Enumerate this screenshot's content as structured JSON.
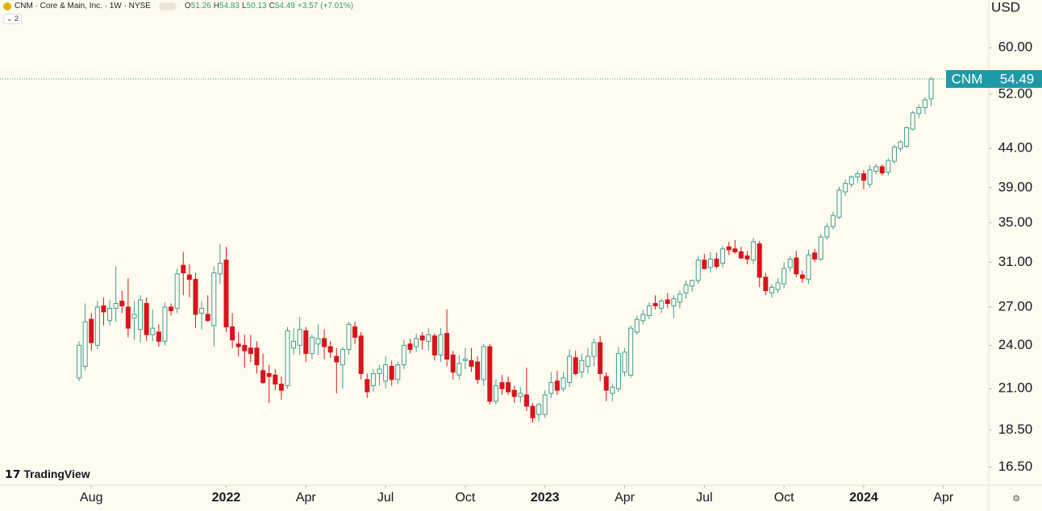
{
  "header": {
    "title": "CNM · Core & Main, Inc. · 1W · NYSE",
    "collapse_count": 2,
    "brand": "TradingView"
  },
  "chart_data": {
    "type": "candlestick",
    "symbol": "CNM",
    "currency": "USD",
    "ohlc_labels": [
      "O",
      "H",
      "L",
      "C"
    ],
    "change": {
      "value": 3.57,
      "label": "+3.57"
    },
    "change_percent": {
      "value": 7.01,
      "label": "(+7.01%)"
    },
    "up_color": "#3f9c96",
    "down_color": "#d8141c",
    "log_scale": true,
    "xlim": [
      -12.9,
      148.4
    ],
    "ylim": [
      15.6,
      69.5
    ],
    "xticks": [
      {
        "value": 2,
        "label": "Aug"
      },
      {
        "value": 24,
        "label": "2022"
      },
      {
        "value": 37,
        "label": "Apr"
      },
      {
        "value": 50,
        "label": "Jul"
      },
      {
        "value": 63,
        "label": "Oct"
      },
      {
        "value": 76,
        "label": "2023"
      },
      {
        "value": 89,
        "label": "Apr"
      },
      {
        "value": 102,
        "label": "Jul"
      },
      {
        "value": 115,
        "label": "Oct"
      },
      {
        "value": 128,
        "label": "2024"
      },
      {
        "value": 141,
        "label": "Apr"
      }
    ],
    "yticks": [
      {
        "value": 16.5,
        "label": "16.50"
      },
      {
        "value": 18.5,
        "label": "18.50"
      },
      {
        "value": 21,
        "label": "21.00"
      },
      {
        "value": 24,
        "label": "24.00"
      },
      {
        "value": 27,
        "label": "27.00"
      },
      {
        "value": 31,
        "label": "31.00"
      },
      {
        "value": 35,
        "label": "35.00"
      },
      {
        "value": 39,
        "label": "39.00"
      },
      {
        "value": 44,
        "label": "44.00"
      },
      {
        "value": 52,
        "label": "52.00"
      },
      {
        "value": 60,
        "label": "60.00"
      }
    ],
    "candles": [
      [
        21.7,
        24.3,
        21.5,
        24.0
      ],
      [
        22.5,
        27.3,
        22.2,
        25.8
      ],
      [
        26.0,
        26.5,
        23.6,
        24.2
      ],
      [
        24.0,
        27.5,
        23.7,
        27.0
      ],
      [
        27.1,
        27.8,
        25.5,
        26.6
      ],
      [
        25.9,
        27.6,
        25.5,
        26.9
      ],
      [
        26.9,
        30.6,
        25.8,
        27.3
      ],
      [
        27.5,
        28.4,
        26.5,
        27.1
      ],
      [
        27.0,
        29.5,
        24.6,
        25.3
      ],
      [
        26.1,
        27.5,
        24.4,
        26.4
      ],
      [
        25.2,
        28.0,
        24.2,
        27.6
      ],
      [
        27.3,
        27.8,
        24.3,
        24.8
      ],
      [
        24.8,
        26.8,
        24.3,
        25.3
      ],
      [
        25.0,
        25.6,
        23.9,
        24.3
      ],
      [
        24.3,
        27.4,
        24.0,
        27.0
      ],
      [
        27.0,
        27.3,
        26.3,
        26.7
      ],
      [
        26.9,
        30.4,
        26.5,
        29.9
      ],
      [
        30.7,
        32.0,
        28.0,
        30.0
      ],
      [
        29.8,
        30.8,
        27.8,
        29.4
      ],
      [
        29.4,
        30.0,
        25.3,
        26.4
      ],
      [
        26.5,
        27.5,
        25.2,
        26.9
      ],
      [
        26.4,
        28.0,
        25.8,
        25.9
      ],
      [
        25.5,
        30.6,
        23.9,
        30.0
      ],
      [
        29.9,
        32.8,
        29.0,
        30.9
      ],
      [
        31.2,
        32.5,
        25.0,
        25.4
      ],
      [
        25.4,
        26.5,
        23.8,
        24.4
      ],
      [
        24.1,
        25.0,
        23.2,
        23.9
      ],
      [
        24.0,
        24.8,
        22.4,
        23.6
      ],
      [
        23.8,
        24.8,
        22.8,
        23.4
      ],
      [
        23.8,
        24.3,
        22.0,
        22.6
      ],
      [
        22.2,
        23.4,
        21.3,
        21.4
      ],
      [
        22.0,
        22.6,
        20.1,
        21.8
      ],
      [
        21.9,
        22.3,
        20.9,
        21.3
      ],
      [
        21.3,
        21.8,
        20.3,
        20.9
      ],
      [
        21.2,
        25.4,
        21.0,
        25.1
      ],
      [
        23.8,
        25.3,
        23.3,
        24.3
      ],
      [
        24.0,
        26.2,
        23.3,
        25.2
      ],
      [
        25.1,
        25.4,
        22.8,
        23.4
      ],
      [
        23.4,
        24.8,
        23.0,
        24.6
      ],
      [
        24.1,
        25.6,
        23.3,
        24.5
      ],
      [
        24.5,
        25.2,
        23.0,
        23.9
      ],
      [
        23.9,
        24.3,
        23.1,
        23.5
      ],
      [
        23.2,
        23.8,
        20.7,
        22.8
      ],
      [
        22.6,
        23.9,
        21.0,
        23.7
      ],
      [
        23.7,
        25.8,
        23.3,
        25.6
      ],
      [
        25.4,
        25.8,
        24.1,
        24.6
      ],
      [
        24.7,
        25.0,
        21.6,
        22.0
      ],
      [
        21.6,
        22.0,
        20.4,
        20.8
      ],
      [
        21.2,
        22.3,
        20.8,
        22.0
      ],
      [
        22.0,
        22.6,
        21.2,
        22.3
      ],
      [
        21.5,
        23.2,
        21.0,
        22.6
      ],
      [
        22.5,
        22.9,
        21.2,
        21.6
      ],
      [
        21.6,
        22.8,
        21.3,
        22.6
      ],
      [
        22.6,
        24.4,
        22.3,
        24.0
      ],
      [
        24.1,
        24.5,
        23.4,
        23.7
      ],
      [
        23.9,
        24.9,
        23.5,
        24.5
      ],
      [
        24.7,
        25.0,
        23.7,
        24.4
      ],
      [
        24.3,
        25.3,
        23.6,
        24.8
      ],
      [
        24.7,
        24.9,
        22.9,
        23.3
      ],
      [
        23.3,
        25.3,
        22.8,
        24.8
      ],
      [
        24.9,
        26.8,
        22.5,
        23.0
      ],
      [
        23.3,
        23.6,
        21.6,
        22.1
      ],
      [
        21.9,
        23.3,
        21.6,
        22.7
      ],
      [
        22.9,
        23.8,
        22.3,
        23.0
      ],
      [
        22.9,
        23.8,
        22.1,
        22.5
      ],
      [
        22.8,
        23.2,
        21.3,
        21.6
      ],
      [
        21.6,
        24.1,
        21.2,
        23.9
      ],
      [
        23.9,
        24.1,
        20.0,
        20.2
      ],
      [
        20.2,
        21.6,
        20.0,
        21.2
      ],
      [
        21.4,
        21.9,
        20.6,
        21.0
      ],
      [
        21.4,
        21.8,
        20.6,
        20.8
      ],
      [
        20.9,
        21.2,
        20.1,
        20.5
      ],
      [
        20.5,
        21.1,
        20.1,
        20.7
      ],
      [
        20.6,
        22.4,
        19.6,
        19.9
      ],
      [
        19.9,
        20.1,
        18.9,
        19.2
      ],
      [
        19.4,
        20.1,
        19.0,
        20.0
      ],
      [
        19.4,
        20.9,
        19.2,
        20.6
      ],
      [
        20.7,
        22.1,
        20.4,
        21.4
      ],
      [
        21.5,
        22.2,
        20.6,
        20.9
      ],
      [
        21.0,
        22.1,
        20.8,
        21.7
      ],
      [
        21.4,
        23.7,
        21.1,
        23.2
      ],
      [
        23.1,
        23.6,
        21.9,
        22.0
      ],
      [
        22.1,
        23.4,
        21.7,
        22.9
      ],
      [
        22.5,
        23.8,
        22.0,
        23.2
      ],
      [
        23.2,
        24.5,
        22.5,
        24.2
      ],
      [
        24.2,
        24.7,
        21.5,
        22.0
      ],
      [
        21.8,
        22.1,
        20.2,
        20.9
      ],
      [
        20.7,
        21.3,
        20.2,
        21.1
      ],
      [
        21.0,
        23.9,
        20.8,
        23.4
      ],
      [
        22.1,
        23.8,
        21.8,
        23.5
      ],
      [
        21.9,
        25.5,
        21.7,
        25.3
      ],
      [
        25.0,
        26.3,
        24.8,
        26.0
      ],
      [
        25.9,
        26.8,
        25.6,
        26.4
      ],
      [
        26.3,
        27.4,
        26.0,
        27.1
      ],
      [
        27.3,
        28.0,
        26.8,
        27.1
      ],
      [
        26.9,
        27.7,
        26.5,
        27.5
      ],
      [
        27.6,
        28.2,
        26.9,
        27.3
      ],
      [
        27.1,
        28.0,
        26.1,
        27.7
      ],
      [
        27.4,
        28.4,
        26.9,
        28.1
      ],
      [
        28.2,
        29.3,
        27.7,
        28.9
      ],
      [
        28.8,
        29.4,
        28.3,
        29.3
      ],
      [
        29.3,
        31.6,
        29.0,
        31.2
      ],
      [
        31.2,
        31.8,
        30.3,
        30.4
      ],
      [
        30.5,
        32.0,
        30.0,
        31.3
      ],
      [
        31.3,
        31.9,
        30.4,
        30.6
      ],
      [
        30.9,
        32.6,
        30.5,
        32.3
      ],
      [
        32.5,
        33.0,
        31.7,
        32.2
      ],
      [
        32.3,
        33.2,
        31.8,
        32.0
      ],
      [
        32.0,
        32.5,
        31.3,
        31.4
      ],
      [
        31.6,
        32.1,
        30.8,
        31.3
      ],
      [
        31.2,
        33.4,
        30.8,
        33.0
      ],
      [
        32.8,
        33.1,
        28.7,
        29.6
      ],
      [
        29.6,
        30.0,
        28.0,
        28.4
      ],
      [
        28.2,
        29.0,
        27.8,
        28.7
      ],
      [
        28.5,
        29.5,
        28.2,
        29.1
      ],
      [
        29.0,
        31.0,
        28.6,
        30.4
      ],
      [
        30.5,
        31.6,
        30.1,
        31.3
      ],
      [
        31.4,
        32.1,
        29.6,
        29.9
      ],
      [
        29.8,
        30.2,
        29.1,
        29.5
      ],
      [
        29.4,
        32.2,
        29.0,
        31.7
      ],
      [
        31.9,
        32.3,
        31.0,
        31.3
      ],
      [
        31.3,
        33.8,
        31.1,
        33.5
      ],
      [
        33.5,
        35.0,
        33.2,
        34.6
      ],
      [
        34.6,
        36.2,
        34.3,
        35.8
      ],
      [
        35.6,
        39.1,
        35.4,
        38.7
      ],
      [
        38.5,
        40.0,
        38.0,
        39.5
      ],
      [
        39.4,
        40.5,
        39.0,
        40.3
      ],
      [
        40.3,
        41.1,
        39.6,
        40.7
      ],
      [
        40.7,
        41.2,
        38.8,
        39.9
      ],
      [
        39.4,
        41.8,
        39.0,
        41.2
      ],
      [
        41.0,
        42.0,
        40.6,
        41.6
      ],
      [
        41.6,
        41.9,
        40.5,
        40.8
      ],
      [
        40.9,
        42.7,
        40.5,
        42.4
      ],
      [
        42.3,
        44.5,
        42.0,
        44.2
      ],
      [
        44.0,
        45.1,
        43.6,
        44.9
      ],
      [
        44.3,
        47.1,
        44.1,
        46.9
      ],
      [
        46.7,
        49.4,
        46.5,
        49.1
      ],
      [
        49.0,
        50.4,
        48.3,
        49.9
      ],
      [
        49.9,
        51.5,
        48.9,
        51.1
      ],
      [
        51.26,
        54.83,
        50.13,
        54.49
      ]
    ]
  }
}
